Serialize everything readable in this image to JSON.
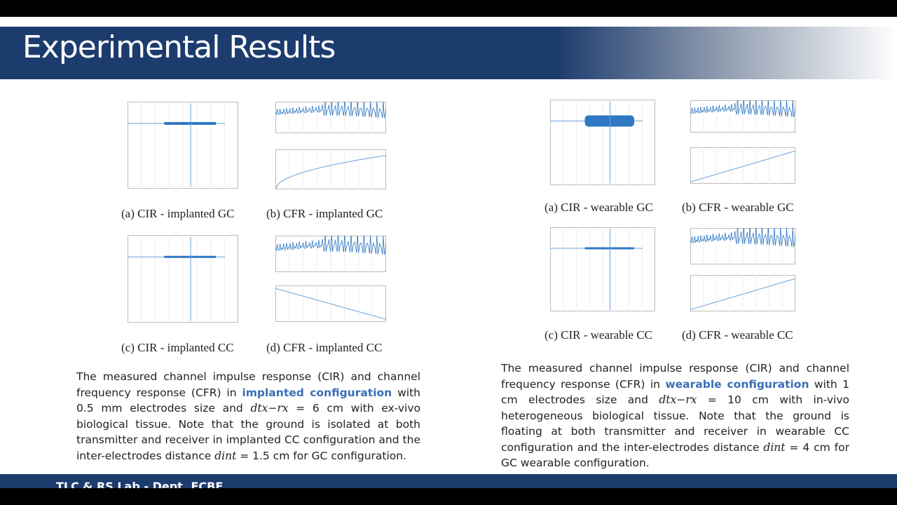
{
  "header": {
    "title": "Experimental Results"
  },
  "left": {
    "captions": [
      "(a) CIR - implanted GC",
      "(b) CFR - implanted GC",
      "(c) CIR - implanted CC",
      "(d) CFR - implanted CC"
    ],
    "paragraph": [
      "The measured channel impulse response (CIR) and channel frequency response (CFR) in ",
      "implanted configuration",
      " with 0.5 mm electrodes size and ",
      "dtx−rx",
      " = 6 cm with ex-vivo biological tissue. Note that the ground is isolated at both transmitter and receiver in implanted CC configuration and the inter-electrodes distance ",
      "dint",
      " = 1.5 cm for GC configuration."
    ]
  },
  "right": {
    "captions": [
      "(a) CIR - wearable GC",
      "(b) CFR - wearable GC",
      "(c) CIR - wearable CC",
      "(d) CFR - wearable CC"
    ],
    "paragraph": [
      "The measured channel impulse response (CIR) and channel frequency response (CFR) in ",
      "wearable configuration",
      " with 1 cm electrodes size and ",
      "dtx−rx",
      " = 10 cm with in-vivo heterogeneous biological tissue. Note that the ground is floating at both transmitter and receiver in wearable CC configuration and the inter-electrodes distance ",
      "dint",
      " = 4 cm for GC wearable configuration."
    ]
  },
  "footer": {
    "text": "TLC & RS Lab - Dept. ECBE"
  }
}
